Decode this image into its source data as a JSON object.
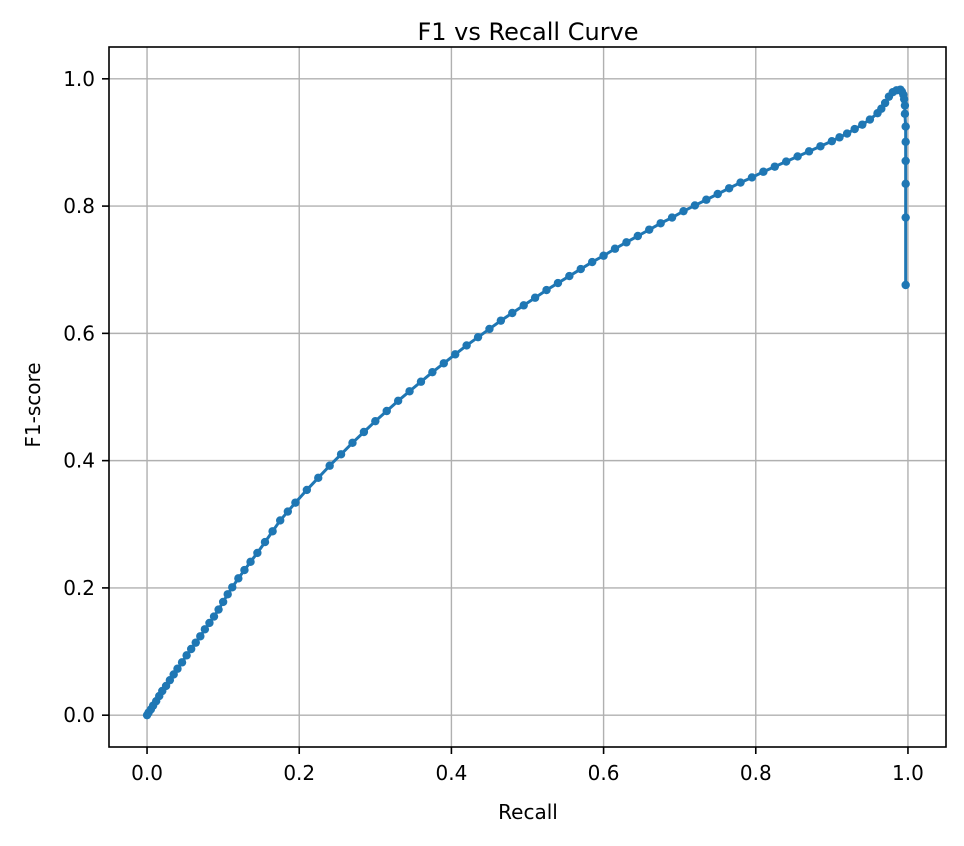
{
  "chart_data": {
    "type": "line",
    "title": "F1 vs Recall Curve",
    "xlabel": "Recall",
    "ylabel": "F1-score",
    "xlim": [
      -0.05,
      1.05
    ],
    "ylim": [
      -0.05,
      1.05
    ],
    "xticks": [
      0.0,
      0.2,
      0.4,
      0.6,
      0.8,
      1.0
    ],
    "xtick_labels": [
      "0.0",
      "0.2",
      "0.4",
      "0.6",
      "0.8",
      "1.0"
    ],
    "yticks": [
      0.0,
      0.2,
      0.4,
      0.6,
      0.8,
      1.0
    ],
    "ytick_labels": [
      "0.0",
      "0.2",
      "0.4",
      "0.6",
      "0.8",
      "1.0"
    ],
    "grid": true,
    "marker": "circle",
    "series_color": "#1f77b4",
    "series": [
      {
        "values": [
          [
            0.0,
            0.0
          ],
          [
            0.002,
            0.004
          ],
          [
            0.005,
            0.009
          ],
          [
            0.008,
            0.015
          ],
          [
            0.012,
            0.022
          ],
          [
            0.016,
            0.03
          ],
          [
            0.02,
            0.038
          ],
          [
            0.025,
            0.046
          ],
          [
            0.03,
            0.055
          ],
          [
            0.035,
            0.064
          ],
          [
            0.04,
            0.073
          ],
          [
            0.046,
            0.083
          ],
          [
            0.052,
            0.094
          ],
          [
            0.058,
            0.104
          ],
          [
            0.064,
            0.114
          ],
          [
            0.07,
            0.124
          ],
          [
            0.076,
            0.135
          ],
          [
            0.082,
            0.145
          ],
          [
            0.088,
            0.155
          ],
          [
            0.094,
            0.166
          ],
          [
            0.1,
            0.178
          ],
          [
            0.106,
            0.19
          ],
          [
            0.112,
            0.201
          ],
          [
            0.12,
            0.215
          ],
          [
            0.128,
            0.228
          ],
          [
            0.136,
            0.241
          ],
          [
            0.145,
            0.255
          ],
          [
            0.155,
            0.272
          ],
          [
            0.165,
            0.289
          ],
          [
            0.175,
            0.306
          ],
          [
            0.185,
            0.32
          ],
          [
            0.195,
            0.334
          ],
          [
            0.21,
            0.354
          ],
          [
            0.225,
            0.373
          ],
          [
            0.24,
            0.392
          ],
          [
            0.255,
            0.41
          ],
          [
            0.27,
            0.428
          ],
          [
            0.285,
            0.445
          ],
          [
            0.3,
            0.462
          ],
          [
            0.315,
            0.478
          ],
          [
            0.33,
            0.494
          ],
          [
            0.345,
            0.509
          ],
          [
            0.36,
            0.524
          ],
          [
            0.375,
            0.539
          ],
          [
            0.39,
            0.553
          ],
          [
            0.405,
            0.567
          ],
          [
            0.42,
            0.581
          ],
          [
            0.435,
            0.594
          ],
          [
            0.45,
            0.607
          ],
          [
            0.465,
            0.62
          ],
          [
            0.48,
            0.632
          ],
          [
            0.495,
            0.644
          ],
          [
            0.51,
            0.656
          ],
          [
            0.525,
            0.668
          ],
          [
            0.54,
            0.679
          ],
          [
            0.555,
            0.69
          ],
          [
            0.57,
            0.701
          ],
          [
            0.585,
            0.712
          ],
          [
            0.6,
            0.722
          ],
          [
            0.615,
            0.733
          ],
          [
            0.63,
            0.743
          ],
          [
            0.645,
            0.753
          ],
          [
            0.66,
            0.763
          ],
          [
            0.675,
            0.773
          ],
          [
            0.69,
            0.782
          ],
          [
            0.705,
            0.792
          ],
          [
            0.72,
            0.801
          ],
          [
            0.735,
            0.81
          ],
          [
            0.75,
            0.819
          ],
          [
            0.765,
            0.828
          ],
          [
            0.78,
            0.837
          ],
          [
            0.795,
            0.845
          ],
          [
            0.81,
            0.854
          ],
          [
            0.825,
            0.862
          ],
          [
            0.84,
            0.87
          ],
          [
            0.855,
            0.878
          ],
          [
            0.87,
            0.886
          ],
          [
            0.885,
            0.894
          ],
          [
            0.9,
            0.902
          ],
          [
            0.91,
            0.908
          ],
          [
            0.92,
            0.914
          ],
          [
            0.93,
            0.921
          ],
          [
            0.94,
            0.928
          ],
          [
            0.95,
            0.936
          ],
          [
            0.96,
            0.946
          ],
          [
            0.965,
            0.953
          ],
          [
            0.97,
            0.962
          ],
          [
            0.975,
            0.972
          ],
          [
            0.98,
            0.979
          ],
          [
            0.985,
            0.982
          ],
          [
            0.99,
            0.983
          ],
          [
            0.992,
            0.98
          ],
          [
            0.994,
            0.975
          ],
          [
            0.995,
            0.968
          ],
          [
            0.996,
            0.958
          ],
          [
            0.996,
            0.945
          ],
          [
            0.997,
            0.925
          ],
          [
            0.997,
            0.901
          ],
          [
            0.997,
            0.871
          ],
          [
            0.997,
            0.835
          ],
          [
            0.997,
            0.782
          ],
          [
            0.997,
            0.676
          ]
        ]
      }
    ]
  }
}
